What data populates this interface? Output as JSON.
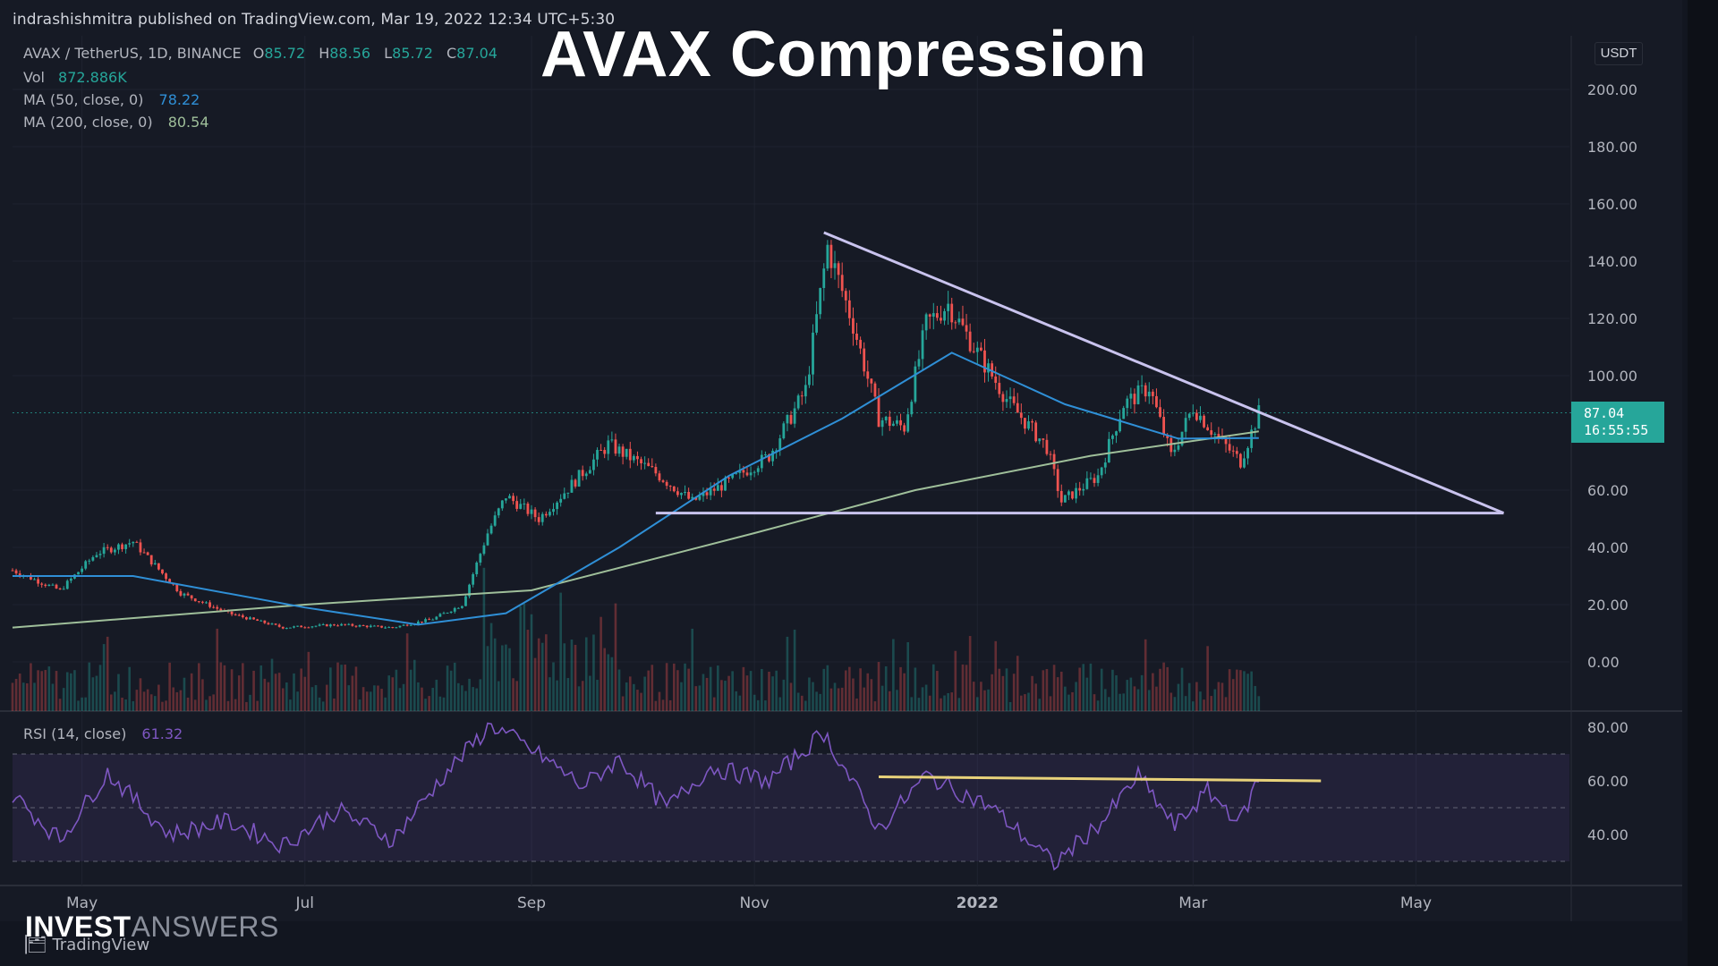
{
  "published_line": "indrashishmitra published on TradingView.com, Mar 19, 2022 12:34 UTC+5:30",
  "overlay_title": "AVAX Compression",
  "watermark": {
    "bold": "INVEST",
    "light": "ANSWERS"
  },
  "tradingview_brand": "TradingView",
  "currency_button": "USDT",
  "legend": {
    "symbol": "AVAX / TetherUS, 1D, BINANCE",
    "open_label": "O",
    "open": "85.72",
    "high_label": "H",
    "high": "88.56",
    "low_label": "L",
    "low": "85.72",
    "close_label": "C",
    "close": "87.04",
    "vol_label": "Vol",
    "vol": "872.886K",
    "ma50_label": "MA (50, close, 0)",
    "ma50": "78.22",
    "ma200_label": "MA (200, close, 0)",
    "ma200": "80.54",
    "rsi_label": "RSI (14, close)",
    "rsi": "61.32"
  },
  "price_tag": {
    "price": "87.04",
    "countdown": "16:55:55"
  },
  "colors": {
    "background": "#161a25",
    "up": "#26a69a",
    "down": "#ef5350",
    "ma50": "#2f8fd6",
    "ma200": "#9fbf9a",
    "rsi": "#7e57c2",
    "trendline": "#c9c3ee",
    "rsi_trendline": "#e8d27a"
  },
  "chart_data": [
    {
      "type": "candlestick",
      "title": "",
      "ylim": [
        -10,
        210
      ],
      "y_ticks": [
        "200.00",
        "180.00",
        "160.00",
        "140.00",
        "120.00",
        "100.00",
        "60.00",
        "40.00",
        "20.00",
        "0.00"
      ],
      "x_ticks": [
        "May",
        "Jul",
        "Sep",
        "Nov",
        "2022",
        "Mar",
        "May"
      ],
      "x_range": [
        "2021-04-12",
        "2022-06-12"
      ],
      "price_path": [
        {
          "date": "2021-04-12",
          "close": 32
        },
        {
          "date": "2021-04-25",
          "close": 25
        },
        {
          "date": "2021-05-05",
          "close": 38
        },
        {
          "date": "2021-05-15",
          "close": 42
        },
        {
          "date": "2021-05-28",
          "close": 24
        },
        {
          "date": "2021-06-10",
          "close": 17
        },
        {
          "date": "2021-06-25",
          "close": 12
        },
        {
          "date": "2021-07-10",
          "close": 13
        },
        {
          "date": "2021-07-25",
          "close": 12
        },
        {
          "date": "2021-08-05",
          "close": 15
        },
        {
          "date": "2021-08-13",
          "close": 20
        },
        {
          "date": "2021-08-20",
          "close": 45
        },
        {
          "date": "2021-08-25",
          "close": 58
        },
        {
          "date": "2021-09-03",
          "close": 50
        },
        {
          "date": "2021-09-12",
          "close": 62
        },
        {
          "date": "2021-09-22",
          "close": 76
        },
        {
          "date": "2021-10-05",
          "close": 66
        },
        {
          "date": "2021-10-15",
          "close": 56
        },
        {
          "date": "2021-10-25",
          "close": 63
        },
        {
          "date": "2021-11-05",
          "close": 72
        },
        {
          "date": "2021-11-15",
          "close": 95
        },
        {
          "date": "2021-11-21",
          "close": 145
        },
        {
          "date": "2021-11-28",
          "close": 118
        },
        {
          "date": "2021-12-05",
          "close": 85
        },
        {
          "date": "2021-12-12",
          "close": 82
        },
        {
          "date": "2021-12-18",
          "close": 118
        },
        {
          "date": "2021-12-24",
          "close": 125
        },
        {
          "date": "2022-01-01",
          "close": 108
        },
        {
          "date": "2022-01-10",
          "close": 90
        },
        {
          "date": "2022-01-20",
          "close": 75
        },
        {
          "date": "2022-01-24",
          "close": 56
        },
        {
          "date": "2022-02-03",
          "close": 65
        },
        {
          "date": "2022-02-10",
          "close": 90
        },
        {
          "date": "2022-02-17",
          "close": 96
        },
        {
          "date": "2022-02-23",
          "close": 72
        },
        {
          "date": "2022-03-01",
          "close": 89
        },
        {
          "date": "2022-03-08",
          "close": 78
        },
        {
          "date": "2022-03-14",
          "close": 70
        },
        {
          "date": "2022-03-19",
          "close": 87.04
        }
      ],
      "ma50_path": [
        {
          "date": "2021-04-12",
          "close": 30
        },
        {
          "date": "2021-05-15",
          "close": 30
        },
        {
          "date": "2021-07-01",
          "close": 19
        },
        {
          "date": "2021-08-01",
          "close": 13
        },
        {
          "date": "2021-08-25",
          "close": 17
        },
        {
          "date": "2021-09-25",
          "close": 40
        },
        {
          "date": "2021-10-25",
          "close": 65
        },
        {
          "date": "2021-11-25",
          "close": 85
        },
        {
          "date": "2021-12-25",
          "close": 108
        },
        {
          "date": "2022-01-25",
          "close": 90
        },
        {
          "date": "2022-02-25",
          "close": 78
        },
        {
          "date": "2022-03-19",
          "close": 78.22
        }
      ],
      "ma200_path": [
        {
          "date": "2021-04-12",
          "close": 12
        },
        {
          "date": "2021-07-01",
          "close": 20
        },
        {
          "date": "2021-09-01",
          "close": 25
        },
        {
          "date": "2021-11-01",
          "close": 45
        },
        {
          "date": "2021-12-15",
          "close": 60
        },
        {
          "date": "2022-02-01",
          "close": 72
        },
        {
          "date": "2022-03-19",
          "close": 80.54
        }
      ],
      "last_price": 87.04,
      "annotations": {
        "descending_trendline": [
          {
            "date": "2021-11-20",
            "price": 150
          },
          {
            "date": "2022-05-25",
            "price": 52
          }
        ],
        "horizontal_support": [
          {
            "date": "2021-10-05",
            "price": 52
          },
          {
            "date": "2022-05-25",
            "price": 52
          }
        ]
      }
    },
    {
      "type": "line",
      "title": "RSI (14, close)",
      "ylim": [
        25,
        82
      ],
      "y_ticks": [
        "80.00",
        "60.00",
        "40.00"
      ],
      "bands": [
        70,
        50,
        30
      ],
      "series": [
        {
          "name": "RSI (14, close)",
          "points": [
            {
              "date": "2021-04-12",
              "value": 55
            },
            {
              "date": "2021-04-25",
              "value": 38
            },
            {
              "date": "2021-05-08",
              "value": 63
            },
            {
              "date": "2021-05-25",
              "value": 40
            },
            {
              "date": "2021-06-10",
              "value": 45
            },
            {
              "date": "2021-06-25",
              "value": 36
            },
            {
              "date": "2021-07-10",
              "value": 49
            },
            {
              "date": "2021-07-25",
              "value": 38
            },
            {
              "date": "2021-08-08",
              "value": 62
            },
            {
              "date": "2021-08-21",
              "value": 81
            },
            {
              "date": "2021-09-05",
              "value": 68
            },
            {
              "date": "2021-09-15",
              "value": 58
            },
            {
              "date": "2021-09-25",
              "value": 68
            },
            {
              "date": "2021-10-08",
              "value": 50
            },
            {
              "date": "2021-10-20",
              "value": 65
            },
            {
              "date": "2021-11-05",
              "value": 60
            },
            {
              "date": "2021-11-20",
              "value": 78
            },
            {
              "date": "2021-12-05",
              "value": 42
            },
            {
              "date": "2021-12-18",
              "value": 62
            },
            {
              "date": "2022-01-05",
              "value": 50
            },
            {
              "date": "2022-01-22",
              "value": 29
            },
            {
              "date": "2022-02-05",
              "value": 46
            },
            {
              "date": "2022-02-14",
              "value": 62
            },
            {
              "date": "2022-02-24",
              "value": 43
            },
            {
              "date": "2022-03-05",
              "value": 56
            },
            {
              "date": "2022-03-14",
              "value": 45
            },
            {
              "date": "2022-03-19",
              "value": 61.32
            }
          ]
        }
      ],
      "annotations": {
        "rsi_trendline": [
          {
            "date": "2021-12-05",
            "value": 61.5
          },
          {
            "date": "2022-04-05",
            "value": 60
          }
        ]
      }
    }
  ]
}
